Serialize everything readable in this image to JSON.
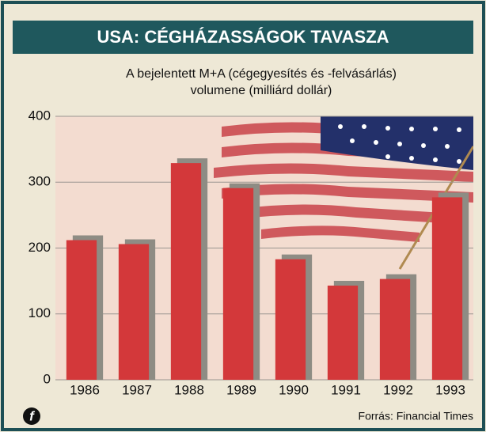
{
  "chart_data": {
    "type": "bar",
    "title": "USA: CÉGHÁZASSÁGOK TAVASZA",
    "subtitle": [
      "A bejelentett M+A (cégegyesítés és -felvásárlás)",
      "volumene (milliárd dollár)"
    ],
    "categories": [
      "1986",
      "1987",
      "1988",
      "1989",
      "1990",
      "1991",
      "1992",
      "1993"
    ],
    "values": [
      212,
      206,
      329,
      291,
      183,
      143,
      153,
      277
    ],
    "color": "#d3383a",
    "ylim": [
      0,
      400
    ],
    "yticks": [
      0,
      100,
      200,
      300,
      400
    ],
    "grid": true,
    "source": "Forrás: Financial Times",
    "logo": "f"
  }
}
